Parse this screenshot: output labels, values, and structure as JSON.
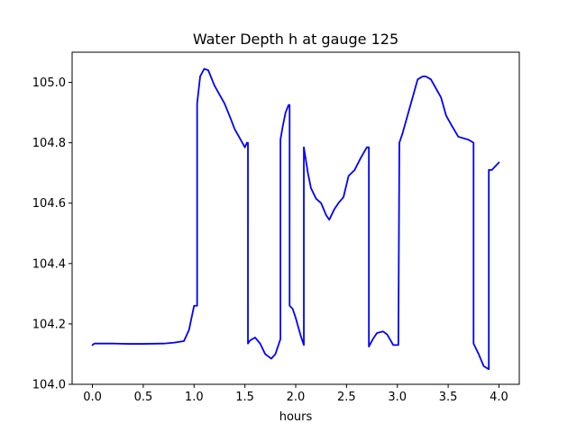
{
  "chart_data": {
    "type": "line",
    "title": "Water Depth h at gauge 125",
    "xlabel": "hours",
    "ylabel": "",
    "xlim": [
      -0.2,
      4.2
    ],
    "ylim": [
      104.0,
      105.1
    ],
    "grid": false,
    "x_ticks": [
      0.0,
      0.5,
      1.0,
      1.5,
      2.0,
      2.5,
      3.0,
      3.5,
      4.0
    ],
    "x_tick_labels": [
      "0.0",
      "0.5",
      "1.0",
      "1.5",
      "2.0",
      "2.5",
      "3.0",
      "3.5",
      "4.0"
    ],
    "y_ticks": [
      104.0,
      104.2,
      104.4,
      104.6,
      104.8,
      105.0
    ],
    "y_tick_labels": [
      "104.0",
      "104.2",
      "104.4",
      "104.6",
      "104.8",
      "105.0"
    ],
    "series": [
      {
        "color": "#0000ff",
        "x": [
          0.0,
          0.02,
          0.2,
          0.35,
          0.5,
          0.7,
          0.8,
          0.9,
          0.95,
          1.0,
          1.03,
          1.03,
          1.06,
          1.1,
          1.14,
          1.2,
          1.3,
          1.36,
          1.4,
          1.45,
          1.5,
          1.52,
          1.53,
          1.53,
          1.55,
          1.6,
          1.65,
          1.7,
          1.76,
          1.8,
          1.85,
          1.85,
          1.87,
          1.9,
          1.93,
          1.94,
          1.94,
          1.97,
          2.0,
          2.05,
          2.08,
          2.08,
          2.12,
          2.15,
          2.2,
          2.25,
          2.3,
          2.33,
          2.38,
          2.42,
          2.47,
          2.52,
          2.58,
          2.64,
          2.7,
          2.72,
          2.72,
          2.76,
          2.8,
          2.86,
          2.9,
          2.96,
          3.01,
          3.02,
          3.02,
          3.05,
          3.1,
          3.15,
          3.2,
          3.25,
          3.28,
          3.33,
          3.38,
          3.43,
          3.48,
          3.53,
          3.6,
          3.7,
          3.75,
          3.75,
          3.8,
          3.85,
          3.9,
          3.9,
          3.93,
          4.0
        ],
        "y": [
          104.13,
          104.135,
          104.135,
          104.134,
          104.134,
          104.135,
          104.138,
          104.143,
          104.18,
          104.26,
          104.26,
          104.93,
          105.02,
          105.045,
          105.04,
          104.99,
          104.93,
          104.88,
          104.845,
          104.815,
          104.785,
          104.8,
          104.8,
          104.135,
          104.145,
          104.155,
          104.135,
          104.1,
          104.085,
          104.1,
          104.15,
          104.81,
          104.85,
          104.9,
          104.925,
          104.925,
          104.26,
          104.25,
          104.22,
          104.16,
          104.13,
          104.785,
          104.7,
          104.65,
          104.615,
          104.6,
          104.56,
          104.545,
          104.58,
          104.6,
          104.62,
          104.69,
          104.71,
          104.75,
          104.785,
          104.785,
          104.125,
          104.15,
          104.17,
          104.175,
          104.165,
          104.13,
          104.13,
          104.8,
          104.8,
          104.83,
          104.89,
          104.95,
          105.01,
          105.02,
          105.02,
          105.01,
          104.98,
          104.95,
          104.89,
          104.86,
          104.82,
          104.81,
          104.8,
          104.135,
          104.1,
          104.06,
          104.05,
          104.71,
          104.71,
          104.735
        ]
      }
    ]
  }
}
